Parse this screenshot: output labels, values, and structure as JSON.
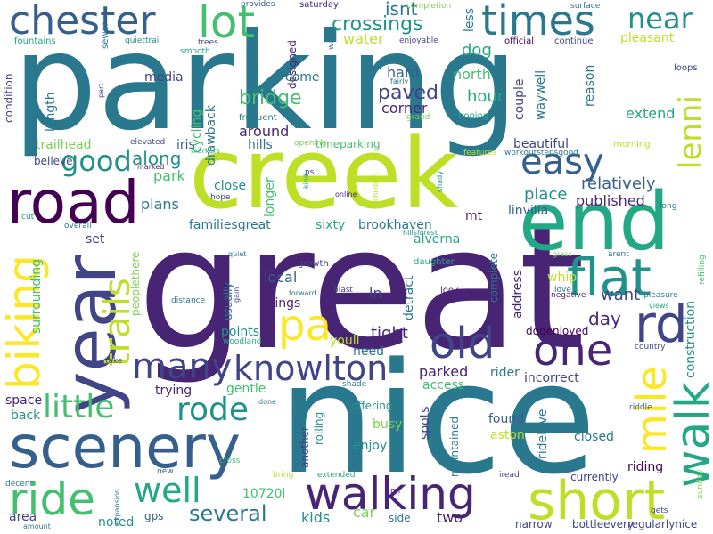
{
  "words": [
    "parking",
    "great",
    "nice",
    "creek",
    "end",
    "road",
    "scenery",
    "year",
    "biking",
    "walking",
    "short",
    "flat",
    "pa",
    "ride",
    "old",
    "one",
    "many",
    "knowlton",
    "chester",
    "times",
    "lot",
    "easy",
    "good",
    "well",
    "rd",
    "walk",
    "mile",
    "trails",
    "little",
    "rode",
    "several",
    "lenni",
    "near",
    "crossings",
    "water",
    "dog",
    "bridge",
    "paved",
    "hard",
    "north",
    "hour",
    "corner",
    "along",
    "park",
    "plans",
    "familiesgreat",
    "sixty",
    "brookhaven",
    "alverna",
    "mt",
    "published",
    "linvilla",
    "relatively",
    "place",
    "beautiful",
    "timeparking",
    "around",
    "hills",
    "cycling",
    "drawback",
    "media",
    "come",
    "length",
    "condition",
    "trailhead",
    "iris",
    "close",
    "longer",
    "local",
    "things",
    "points",
    "usually",
    "detract",
    "ln",
    "tight",
    "parked",
    "access",
    "rider",
    "incorrect",
    "day",
    "want",
    "whip",
    "complete",
    "address",
    "youll",
    "need",
    "trying",
    "gentle",
    "busy",
    "spots",
    "enjoy",
    "found",
    "aston",
    "ridelove",
    "closed",
    "riding",
    "kids",
    "car",
    "side",
    "two",
    "gps",
    "noted",
    "area",
    "10720i",
    "another",
    "maintained",
    "rolling",
    "offering",
    "back",
    "space",
    "set",
    "believe",
    "surrounding",
    "peoplethere",
    "couple",
    "waywell",
    "reason",
    "extend",
    "pleasant",
    "continue",
    "official",
    "loops",
    "morning",
    "construction",
    "dogenjoyed",
    "regularlynice",
    "currently",
    "narrow",
    "bottleevery",
    "isnt",
    "designed",
    "less",
    "completion",
    "surface",
    "saturday",
    "provides",
    "fountains",
    "quiettrail",
    "trees",
    "smooth",
    "sewer",
    "part",
    "frequent",
    "grand",
    "hoping",
    "fairly",
    "way",
    "enjoyable",
    "opening",
    "elevated",
    "markers",
    "marked",
    "features",
    "workoutstepsgood",
    "kind",
    "online",
    "children",
    "shady",
    "ps",
    "hope",
    "long",
    "cut",
    "overall",
    "quiet",
    "growth",
    "daughter",
    "grass",
    "arent",
    "love",
    "negative",
    "pleasure",
    "views",
    "refilling",
    "forward",
    "blast",
    "look",
    "distance",
    "gain",
    "four",
    "woodland",
    "country",
    "take",
    "shade",
    "done",
    "riddle",
    "sunday",
    "cross",
    "iread",
    "mi",
    "new",
    "bring",
    "extended",
    "decent",
    "expansion",
    "amount",
    "gets",
    "hillsforest",
    "arent"
  ]
}
